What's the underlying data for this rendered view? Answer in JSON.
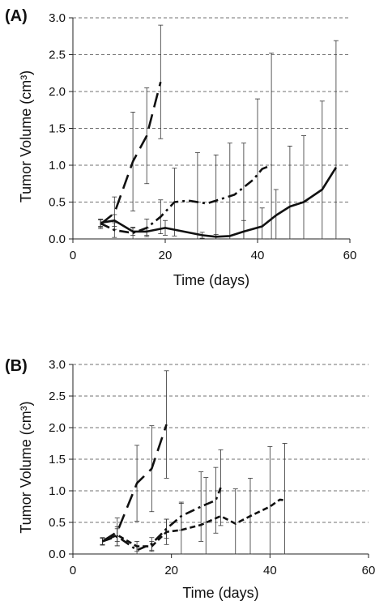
{
  "chart_data": [
    {
      "type": "line",
      "panel_label": "(A)",
      "xlabel": "Time (days)",
      "ylabel": "Tumor Volume (cm³)",
      "xlim": [
        0,
        60
      ],
      "ylim": [
        0,
        3.0
      ],
      "x_ticks": [
        "0",
        "20",
        "40",
        "60"
      ],
      "y_ticks": [
        "0.0",
        "0.5",
        "1.0",
        "1.5",
        "2.0",
        "2.5",
        "3.0"
      ],
      "grid": "horizontal dashed",
      "series": [
        {
          "style": "long-dash",
          "points": [
            [
              6,
              0.2
            ],
            [
              9,
              0.35
            ],
            [
              13,
              1.05
            ],
            [
              16,
              1.4
            ],
            [
              19,
              2.13
            ]
          ],
          "error": [
            [
              6,
              0.06
            ],
            [
              9,
              0.22
            ],
            [
              13,
              0.67
            ],
            [
              16,
              0.65
            ],
            [
              19,
              0.77
            ]
          ]
        },
        {
          "style": "dash-dot",
          "points": [
            [
              6,
              0.21
            ],
            [
              9,
              0.12
            ],
            [
              13,
              0.08
            ],
            [
              16,
              0.15
            ],
            [
              19,
              0.3
            ],
            [
              22,
              0.5
            ],
            [
              25,
              0.52
            ],
            [
              29,
              0.48
            ],
            [
              31,
              0.52
            ],
            [
              35,
              0.6
            ],
            [
              39,
              0.8
            ],
            [
              41,
              0.95
            ],
            [
              43,
              1.0
            ]
          ],
          "error": [
            [
              6,
              0.05
            ],
            [
              9,
              0.1
            ],
            [
              13,
              0.08
            ],
            [
              16,
              0.12
            ],
            [
              19,
              0.23
            ],
            [
              22,
              0.46
            ],
            [
              27,
              0.65
            ],
            [
              31,
              0.62
            ],
            [
              34,
              0.7
            ],
            [
              37,
              0.7
            ],
            [
              40,
              1.1
            ],
            [
              43,
              1.52
            ]
          ]
        },
        {
          "style": "solid",
          "points": [
            [
              6,
              0.22
            ],
            [
              9,
              0.25
            ],
            [
              13,
              0.1
            ],
            [
              16,
              0.1
            ],
            [
              20,
              0.15
            ],
            [
              24,
              0.1
            ],
            [
              28,
              0.05
            ],
            [
              31,
              0.03
            ],
            [
              34,
              0.04
            ],
            [
              37,
              0.1
            ],
            [
              41,
              0.17
            ],
            [
              44,
              0.32
            ],
            [
              47,
              0.44
            ],
            [
              50,
              0.5
            ],
            [
              54,
              0.67
            ],
            [
              57,
              0.97
            ]
          ],
          "error": [
            [
              6,
              0.05
            ],
            [
              9,
              0.08
            ],
            [
              13,
              0.05
            ],
            [
              16,
              0.05
            ],
            [
              20,
              0.1
            ],
            [
              28,
              0.04
            ],
            [
              31,
              0.03
            ],
            [
              37,
              0.15
            ],
            [
              41,
              0.25
            ],
            [
              44,
              0.35
            ],
            [
              47,
              0.82
            ],
            [
              50,
              0.9
            ],
            [
              54,
              1.2
            ],
            [
              57,
              1.72
            ]
          ]
        }
      ]
    },
    {
      "type": "line",
      "panel_label": "(B)",
      "xlabel": "Time (days)",
      "ylabel": "Tumor Volume (cm³)",
      "xlim": [
        0,
        60
      ],
      "ylim": [
        0,
        3.0
      ],
      "x_ticks": [
        "0",
        "20",
        "40",
        "60"
      ],
      "y_ticks": [
        "0.0",
        "0.5",
        "1.0",
        "1.5",
        "2.0",
        "2.5",
        "3.0"
      ],
      "grid": "horizontal dashed",
      "series": [
        {
          "style": "long-dash",
          "points": [
            [
              6,
              0.2
            ],
            [
              9,
              0.35
            ],
            [
              13,
              1.12
            ],
            [
              16,
              1.35
            ],
            [
              19,
              2.05
            ]
          ],
          "error": [
            [
              6,
              0.05
            ],
            [
              9,
              0.22
            ],
            [
              13,
              0.6
            ],
            [
              16,
              0.68
            ],
            [
              19,
              0.85
            ]
          ]
        },
        {
          "style": "dash-dot",
          "points": [
            [
              6,
              0.2
            ],
            [
              9,
              0.28
            ],
            [
              13,
              0.06
            ],
            [
              16,
              0.16
            ],
            [
              19,
              0.4
            ],
            [
              22,
              0.6
            ],
            [
              26,
              0.75
            ],
            [
              29,
              0.85
            ],
            [
              30,
              1.05
            ]
          ],
          "error": [
            [
              6,
              0.05
            ],
            [
              9,
              0.15
            ],
            [
              13,
              0.06
            ],
            [
              16,
              0.1
            ],
            [
              19,
              0.15
            ],
            [
              22,
              0.22
            ],
            [
              26,
              0.55
            ],
            [
              29,
              0.52
            ],
            [
              30,
              0.6
            ]
          ]
        },
        {
          "style": "short-dash",
          "points": [
            [
              6,
              0.2
            ],
            [
              9,
              0.3
            ],
            [
              13,
              0.12
            ],
            [
              16,
              0.12
            ],
            [
              19,
              0.35
            ],
            [
              22,
              0.38
            ],
            [
              26,
              0.46
            ],
            [
              30,
              0.6
            ],
            [
              33,
              0.48
            ],
            [
              36,
              0.6
            ],
            [
              40,
              0.75
            ],
            [
              42,
              0.86
            ],
            [
              43,
              0.85
            ]
          ],
          "error": [
            [
              6,
              0.06
            ],
            [
              9,
              0.1
            ],
            [
              13,
              0.08
            ],
            [
              16,
              0.08
            ],
            [
              19,
              0.2
            ],
            [
              22,
              0.42
            ],
            [
              27,
              0.75
            ],
            [
              33,
              0.55
            ],
            [
              36,
              0.6
            ],
            [
              40,
              0.95
            ],
            [
              43,
              0.9
            ]
          ]
        }
      ]
    }
  ]
}
